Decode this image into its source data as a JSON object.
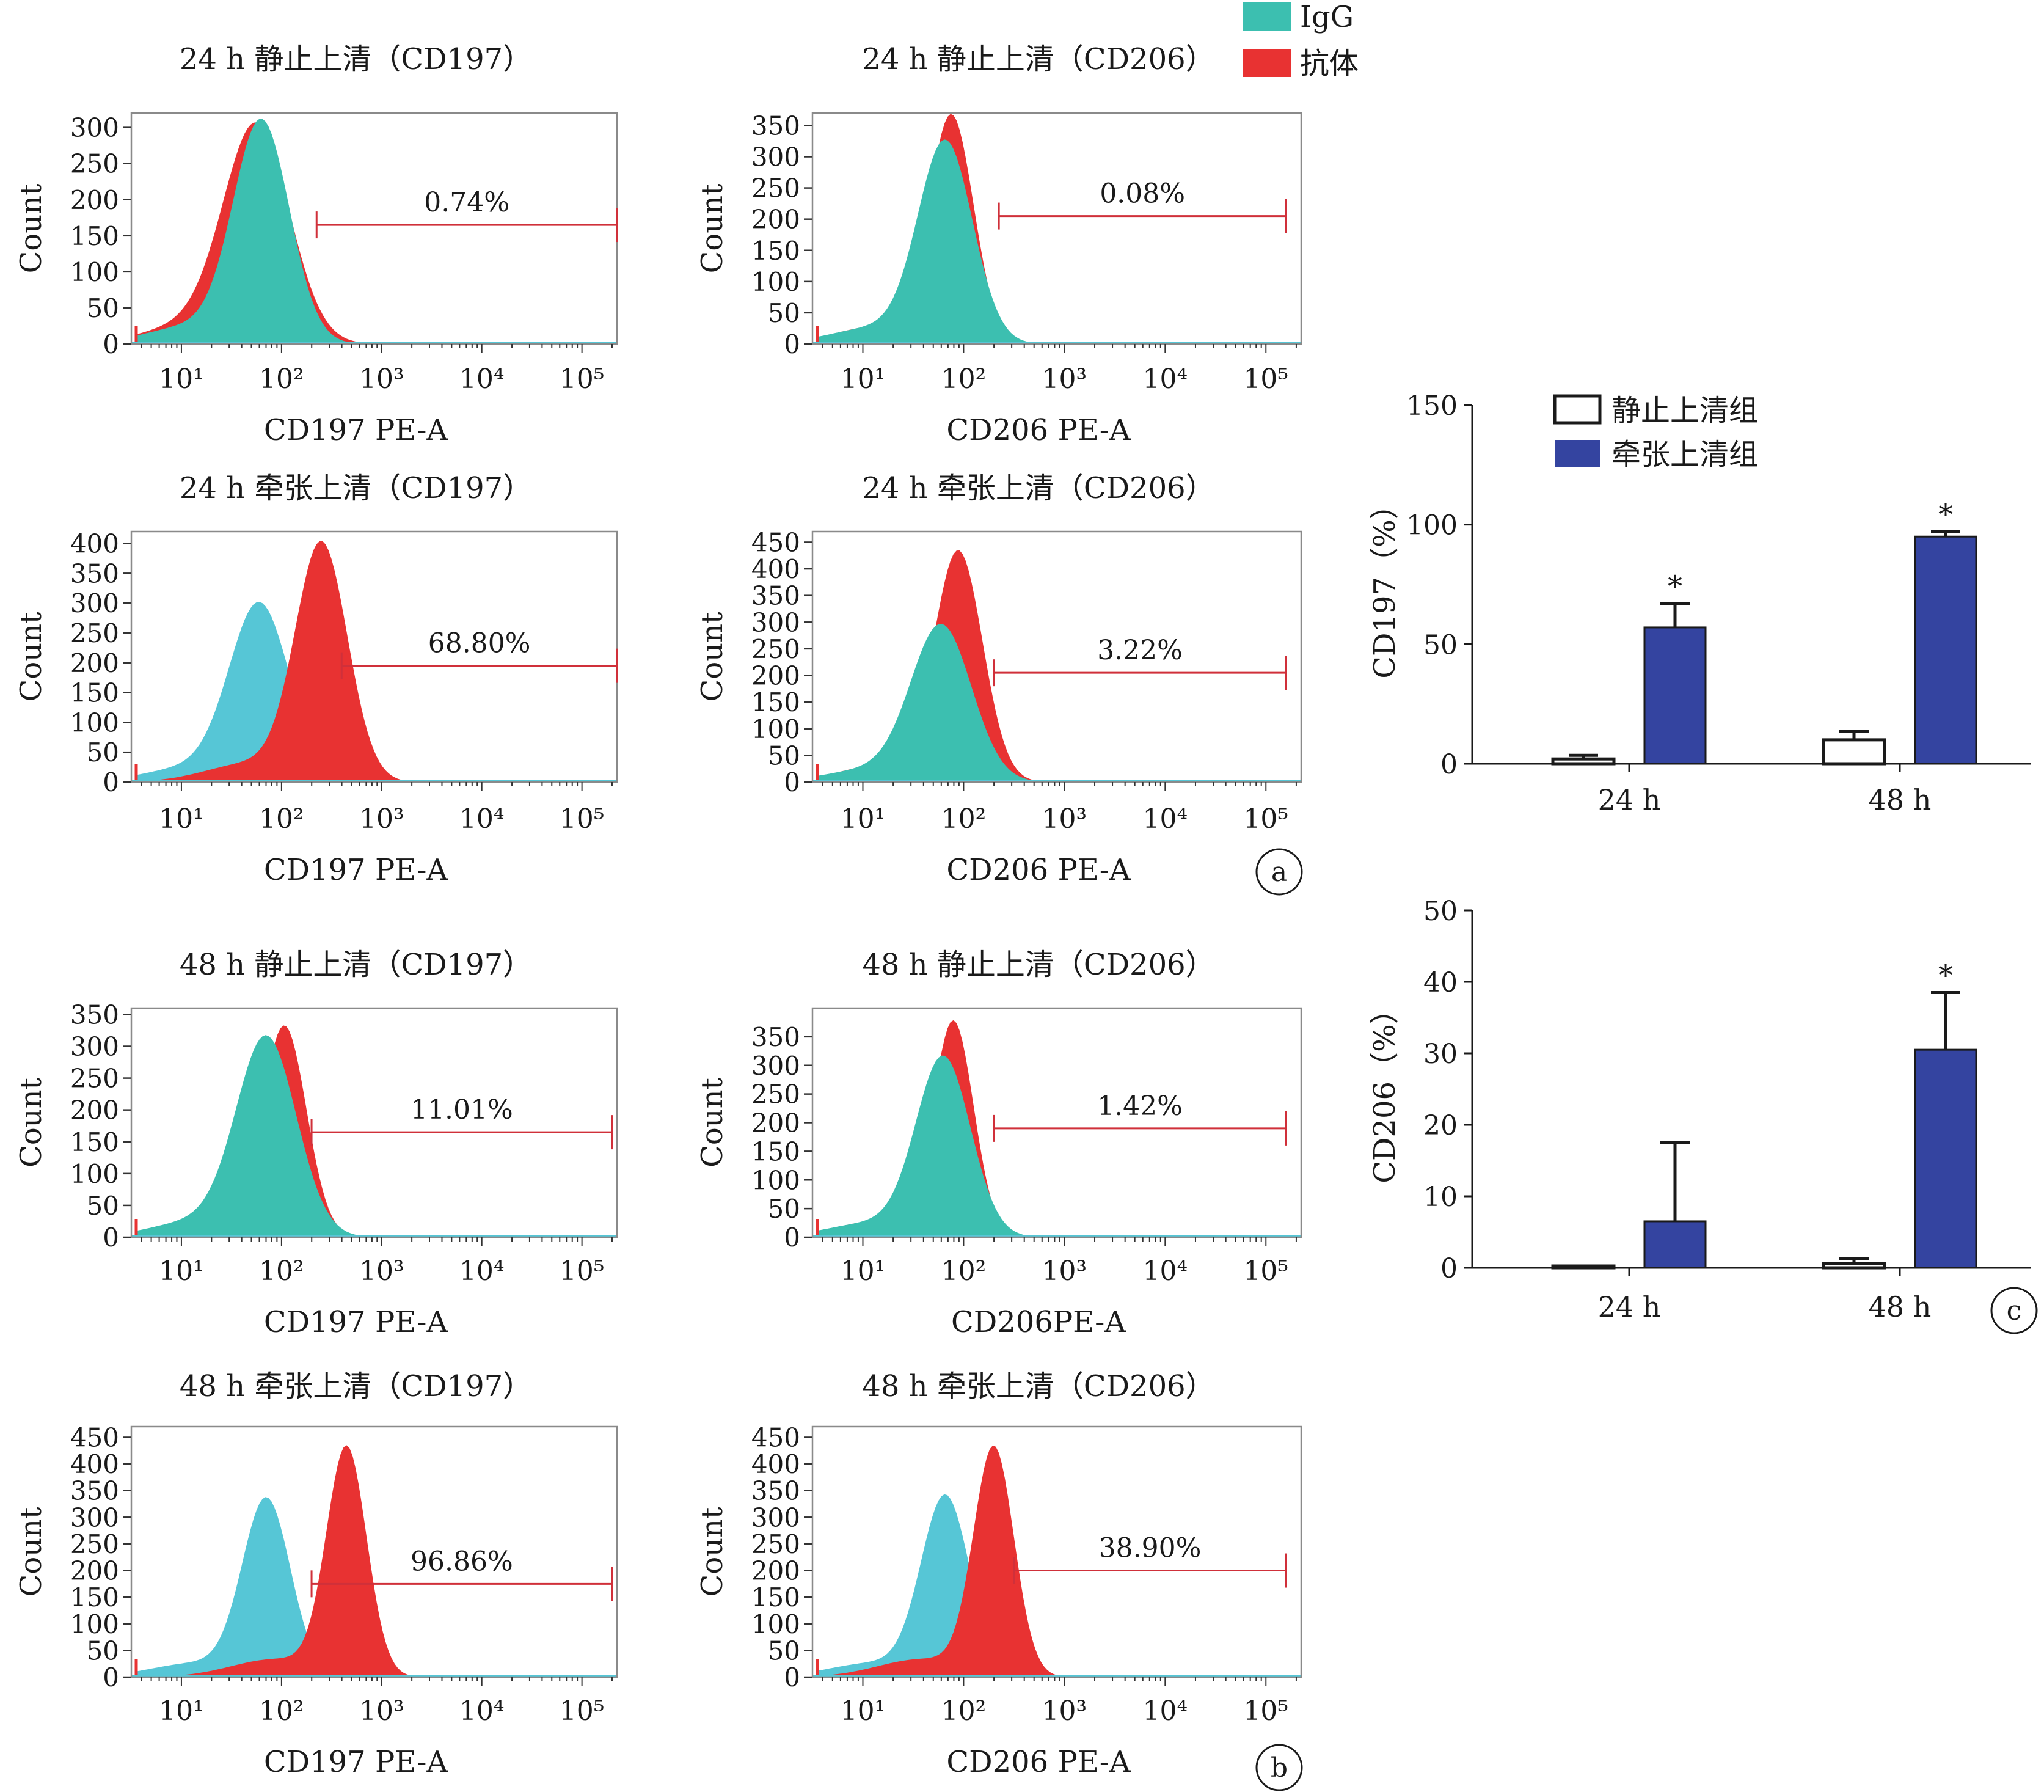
{
  "legend_top": {
    "items": [
      {
        "label": "IgG",
        "color": "#3cbfb0"
      },
      {
        "label": "抗体",
        "color": "#e83232"
      }
    ]
  },
  "panel_labels": {
    "a": "a",
    "b": "b",
    "c": "c"
  },
  "chart_data": [
    {
      "type": "area",
      "title": "24 h 静止上清（CD197）",
      "xlabel": "CD197 PE-A",
      "ylabel": "Count",
      "yticks": [
        0,
        50,
        100,
        150,
        200,
        250,
        300
      ],
      "ylim": [
        0,
        320
      ],
      "xticks": [
        "10¹",
        "10²",
        "10³",
        "10⁴",
        "10⁵"
      ],
      "xscale": "log",
      "xlim": [
        0.5,
        5.35
      ],
      "gate_label": "0.74%",
      "gate_range": [
        2.35,
        5.35
      ],
      "gate_y": 165,
      "series": [
        {
          "name": "IgG",
          "peak_log": 1.8,
          "peak_count": 305,
          "width_log": 0.28
        },
        {
          "name": "抗体",
          "peak_log": 1.75,
          "peak_count": 300,
          "width_log": 0.33
        }
      ]
    },
    {
      "type": "area",
      "title": "24 h 静止上清（CD206）",
      "xlabel": "CD206 PE-A",
      "ylabel": "Count",
      "yticks": [
        0,
        50,
        100,
        150,
        200,
        250,
        300,
        350
      ],
      "ylim": [
        0,
        370
      ],
      "xticks": [
        "10¹",
        "10²",
        "10³",
        "10⁴",
        "10⁵"
      ],
      "xscale": "log",
      "xlim": [
        0.5,
        5.35
      ],
      "gate_label": "0.08%",
      "gate_range": [
        2.35,
        5.2
      ],
      "gate_y": 205,
      "series": [
        {
          "name": "IgG",
          "peak_log": 1.82,
          "peak_count": 320,
          "width_log": 0.27
        },
        {
          "name": "抗体",
          "peak_log": 1.88,
          "peak_count": 360,
          "width_log": 0.22
        }
      ]
    },
    {
      "type": "area",
      "title": "24 h 牵张上清（CD197）",
      "xlabel": "CD197 PE-A",
      "ylabel": "Count",
      "yticks": [
        0,
        50,
        100,
        150,
        200,
        250,
        300,
        350,
        400
      ],
      "ylim": [
        0,
        420
      ],
      "xticks": [
        "10¹",
        "10²",
        "10³",
        "10⁴",
        "10⁵"
      ],
      "xscale": "log",
      "xlim": [
        0.5,
        5.35
      ],
      "gate_label": "68.80%",
      "gate_range": [
        2.6,
        5.35
      ],
      "gate_y": 195,
      "series": [
        {
          "name": "IgG",
          "peak_log": 1.78,
          "peak_count": 295,
          "width_log": 0.3
        },
        {
          "name": "抗体",
          "peak_log": 2.4,
          "peak_count": 395,
          "width_log": 0.26
        }
      ]
    },
    {
      "type": "area",
      "title": "24 h 牵张上清（CD206）",
      "xlabel": "CD206 PE-A",
      "ylabel": "Count",
      "yticks": [
        0,
        50,
        100,
        150,
        200,
        250,
        300,
        350,
        400,
        450
      ],
      "ylim": [
        0,
        470
      ],
      "xticks": [
        "10¹",
        "10²",
        "10³",
        "10⁴",
        "10⁵"
      ],
      "xscale": "log",
      "xlim": [
        0.5,
        5.35
      ],
      "gate_label": "3.22%",
      "gate_range": [
        2.3,
        5.2
      ],
      "gate_y": 205,
      "series": [
        {
          "name": "IgG",
          "peak_log": 1.78,
          "peak_count": 290,
          "width_log": 0.3
        },
        {
          "name": "抗体",
          "peak_log": 1.95,
          "peak_count": 425,
          "width_log": 0.24
        }
      ]
    },
    {
      "type": "area",
      "title": "48 h 静止上清（CD197）",
      "xlabel": "CD197 PE-A",
      "ylabel": "Count",
      "yticks": [
        0,
        50,
        100,
        150,
        200,
        250,
        300,
        350
      ],
      "ylim": [
        0,
        360
      ],
      "xticks": [
        "10¹",
        "10²",
        "10³",
        "10⁴",
        "10⁵"
      ],
      "xscale": "log",
      "xlim": [
        0.5,
        5.35
      ],
      "gate_label": "11.01%",
      "gate_range": [
        2.3,
        5.3
      ],
      "gate_y": 165,
      "series": [
        {
          "name": "IgG",
          "peak_log": 1.85,
          "peak_count": 310,
          "width_log": 0.3
        },
        {
          "name": "抗体",
          "peak_log": 2.03,
          "peak_count": 325,
          "width_log": 0.22
        }
      ]
    },
    {
      "type": "area",
      "title": "48 h 静止上清（CD206）",
      "xlabel": "CD206PE-A",
      "ylabel": "Count",
      "yticks": [
        0,
        50,
        100,
        150,
        200,
        250,
        300,
        350
      ],
      "ylim": [
        0,
        400
      ],
      "xticks": [
        "10¹",
        "10²",
        "10³",
        "10⁴",
        "10⁵"
      ],
      "xscale": "log",
      "xlim": [
        0.5,
        5.35
      ],
      "gate_label": "1.42%",
      "gate_range": [
        2.3,
        5.2
      ],
      "gate_y": 190,
      "series": [
        {
          "name": "IgG",
          "peak_log": 1.8,
          "peak_count": 310,
          "width_log": 0.27
        },
        {
          "name": "抗体",
          "peak_log": 1.9,
          "peak_count": 370,
          "width_log": 0.2
        }
      ]
    },
    {
      "type": "area",
      "title": "48 h 牵张上清（CD197）",
      "xlabel": "CD197 PE-A",
      "ylabel": "Count",
      "yticks": [
        0,
        50,
        100,
        150,
        200,
        250,
        300,
        350,
        400,
        450
      ],
      "ylim": [
        0,
        470
      ],
      "xticks": [
        "10¹",
        "10²",
        "10³",
        "10⁴",
        "10⁵"
      ],
      "xscale": "log",
      "xlim": [
        0.5,
        5.35
      ],
      "gate_label": "96.86%",
      "gate_range": [
        2.3,
        5.3
      ],
      "gate_y": 175,
      "series": [
        {
          "name": "IgG",
          "peak_log": 1.85,
          "peak_count": 330,
          "width_log": 0.24
        },
        {
          "name": "抗体",
          "peak_log": 2.65,
          "peak_count": 425,
          "width_log": 0.2
        }
      ]
    },
    {
      "type": "area",
      "title": "48 h 牵张上清（CD206）",
      "xlabel": "CD206 PE-A",
      "ylabel": "Count",
      "yticks": [
        0,
        50,
        100,
        150,
        200,
        250,
        300,
        350,
        400,
        450
      ],
      "ylim": [
        0,
        470
      ],
      "xticks": [
        "10¹",
        "10²",
        "10³",
        "10⁴",
        "10⁵"
      ],
      "xscale": "log",
      "xlim": [
        0.5,
        5.35
      ],
      "gate_label": "38.90%",
      "gate_range": [
        2.5,
        5.2
      ],
      "gate_y": 200,
      "series": [
        {
          "name": "IgG",
          "peak_log": 1.82,
          "peak_count": 335,
          "width_log": 0.24
        },
        {
          "name": "抗体",
          "peak_log": 2.3,
          "peak_count": 425,
          "width_log": 0.2
        }
      ]
    },
    {
      "type": "bar",
      "ylabel": "CD197（%）",
      "categories": [
        "24 h",
        "48 h"
      ],
      "yticks": [
        0,
        50,
        100,
        150
      ],
      "ylim": [
        0,
        150
      ],
      "series": [
        {
          "name": "静止上清组",
          "color": "#ffffff",
          "values": [
            2,
            10
          ],
          "errors": [
            1.5,
            3.5
          ]
        },
        {
          "name": "牵张上清组",
          "color": "#3444a0",
          "values": [
            57,
            95
          ],
          "errors": [
            10,
            2
          ]
        }
      ],
      "significance": [
        "*",
        "*"
      ]
    },
    {
      "type": "bar",
      "ylabel": "CD206（%）",
      "categories": [
        "24 h",
        "48 h"
      ],
      "yticks": [
        0,
        10,
        20,
        30,
        40,
        50
      ],
      "ylim": [
        0,
        50
      ],
      "series": [
        {
          "name": "静止上清组",
          "color": "#ffffff",
          "values": [
            0.2,
            0.6
          ],
          "errors": [
            0,
            0.7
          ]
        },
        {
          "name": "牵张上清组",
          "color": "#3444a0",
          "values": [
            6.5,
            30.5
          ],
          "errors": [
            11,
            8
          ]
        }
      ],
      "significance": [
        "",
        "*"
      ]
    }
  ]
}
